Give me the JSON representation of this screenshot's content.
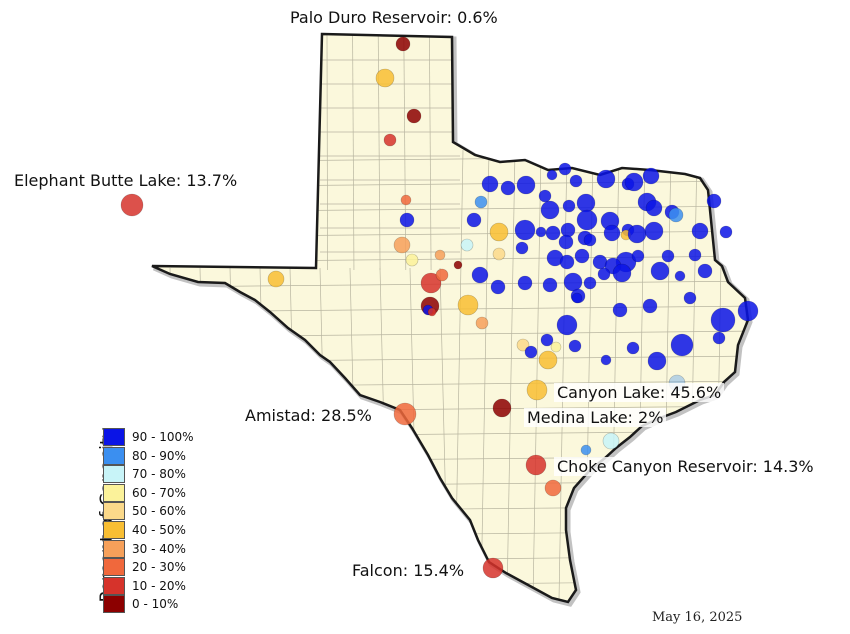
{
  "reservoir_labels": [
    {
      "key": "palo_duro",
      "text": "Palo Duro Reservoir: 0.6%"
    },
    {
      "key": "elephant_butte",
      "text": "Elephant Butte Lake: 13.7%"
    },
    {
      "key": "amistad",
      "text": "Amistad: 28.5%"
    },
    {
      "key": "canyon_lake",
      "text": "Canyon Lake: 45.6%"
    },
    {
      "key": "medina_lake",
      "text": "Medina Lake: 2%"
    },
    {
      "key": "choke_canyon",
      "text": "Choke Canyon Reservoir: 14.3%"
    },
    {
      "key": "falcon",
      "text": "Falcon: 15.4%"
    }
  ],
  "date": "May 16, 2025",
  "legend": {
    "title": "Percent of Capacity",
    "bins": [
      {
        "label": "90 - 100%",
        "color": "#0a14e6"
      },
      {
        "label": "80 - 90%",
        "color": "#3b8ff0"
      },
      {
        "label": "70 - 80%",
        "color": "#c8f4f8"
      },
      {
        "label": "60 - 70%",
        "color": "#fbf29a"
      },
      {
        "label": "50 - 60%",
        "color": "#fbd98a"
      },
      {
        "label": "40 - 50%",
        "color": "#f8be33"
      },
      {
        "label": "30 - 40%",
        "color": "#f6a05a"
      },
      {
        "label": "20 - 30%",
        "color": "#f0683c"
      },
      {
        "label": "10 - 20%",
        "color": "#d6332b"
      },
      {
        "label": "0 - 10%",
        "color": "#8c0000"
      }
    ]
  },
  "colors": {
    "land": "#fbf8dc",
    "border": "#1a1a1a",
    "county_line": "#b8b5a0"
  }
}
